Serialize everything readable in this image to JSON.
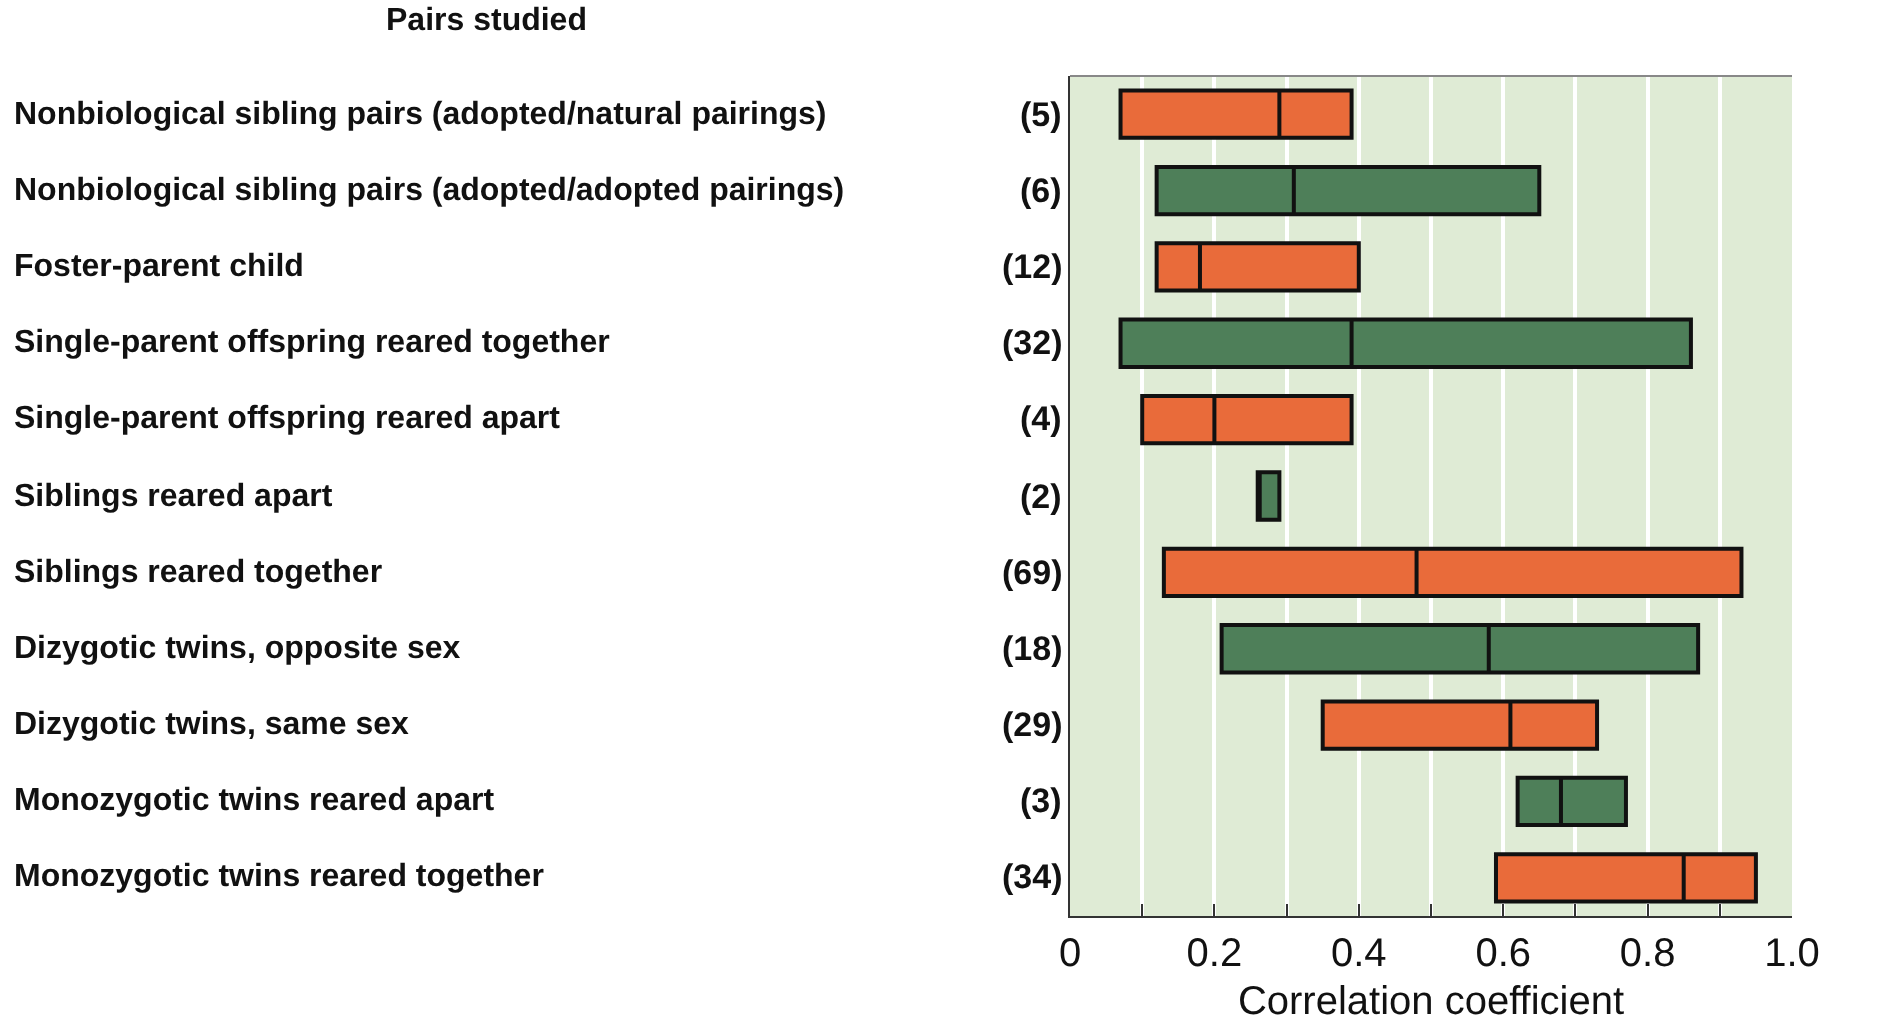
{
  "chart_data": {
    "type": "box",
    "orientation": "horizontal",
    "xlabel": "Correlation coefficient",
    "categories": [
      "Nonbiological sibling pairs (adopted/natural pairings)",
      "Nonbiological sibling pairs (adopted/adopted pairings)",
      "Foster-parent child",
      "Single-parent offspring reared together",
      "Single-parent offspring reared apart",
      "Siblings reared apart",
      "Siblings reared together",
      "Dizygotic twins, opposite sex",
      "Dizygotic twins, same sex",
      "Monozygotic twins reared apart",
      "Monozygotic twins reared together"
    ],
    "annotations": [
      "Pairs studied",
      "(5)",
      "(6)",
      "(12)",
      "(32)",
      "(4)",
      "(2)",
      "(69)",
      "(18)",
      "(29)",
      "(3)",
      "(34)"
    ],
    "colors": [
      "#e96b3a",
      "#4e7f59",
      "#e96b3a",
      "#4e7f59",
      "#e96b3a",
      "#4e7f59",
      "#e96b3a",
      "#4e7f59",
      "#e96b3a",
      "#4e7f59",
      "#e96b3a"
    ],
    "boxes": [
      {
        "low": 0.07,
        "q1": 0.07,
        "median": 0.29,
        "q3": 0.39,
        "high": 0.39
      },
      {
        "low": 0.12,
        "q1": 0.12,
        "median": 0.31,
        "q3": 0.65,
        "high": 0.65
      },
      {
        "low": 0.12,
        "q1": 0.12,
        "median": 0.18,
        "q3": 0.4,
        "high": 0.4
      },
      {
        "low": 0.07,
        "q1": 0.07,
        "median": 0.39,
        "q3": 0.86,
        "high": 0.86
      },
      {
        "low": 0.1,
        "q1": 0.1,
        "median": 0.2,
        "q3": 0.39,
        "high": 0.39
      },
      {
        "low": 0.26,
        "q1": 0.26,
        "median": 0.26,
        "q3": 0.29,
        "high": 0.29
      },
      {
        "low": 0.13,
        "q1": 0.13,
        "median": 0.48,
        "q3": 0.93,
        "high": 0.93
      },
      {
        "low": 0.21,
        "q1": 0.21,
        "median": 0.58,
        "q3": 0.87,
        "high": 0.87
      },
      {
        "low": 0.35,
        "q1": 0.35,
        "median": 0.61,
        "q3": 0.73,
        "high": 0.73
      },
      {
        "low": 0.62,
        "q1": 0.62,
        "median": 0.68,
        "q3": 0.77,
        "high": 0.77
      },
      {
        "low": 0.59,
        "q1": 0.59,
        "median": 0.85,
        "q3": 0.95,
        "high": 0.95
      }
    ],
    "xlim": [
      0,
      1
    ],
    "xticks": [
      0,
      {
        "value": 0.1,
        "label": null
      },
      0.2,
      {
        "value": 0.3,
        "label": null
      },
      0.4,
      {
        "value": 0.5,
        "label": null
      },
      0.6,
      {
        "value": 0.7,
        "label": null
      },
      0.8,
      {
        "value": 0.9,
        "label": null
      },
      {
        "value": 1,
        "label": "1.0"
      }
    ],
    "grid": "x"
  }
}
